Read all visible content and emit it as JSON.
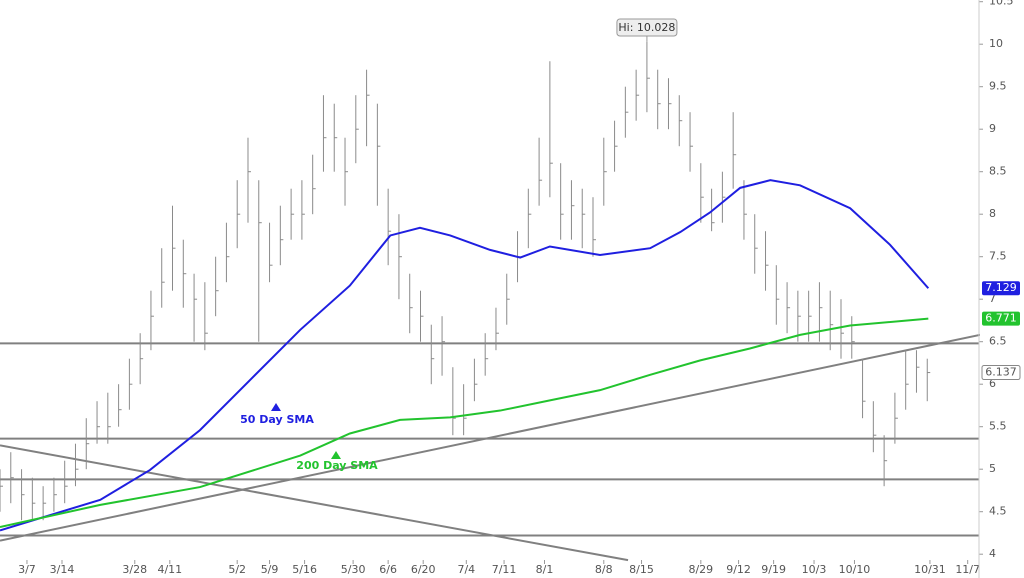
{
  "chart_data": {
    "type": "ohlc",
    "xlim": [
      0,
      181.6
    ],
    "ylim": [
      3.72,
      10.52
    ],
    "xticks": [
      {
        "value": 5,
        "label": "3/7"
      },
      {
        "value": 11.5,
        "label": "3/14"
      },
      {
        "value": 25,
        "label": "3/28"
      },
      {
        "value": 31.5,
        "label": "4/11"
      },
      {
        "value": 44,
        "label": "5/2"
      },
      {
        "value": 50,
        "label": "5/9"
      },
      {
        "value": 56.5,
        "label": "5/16"
      },
      {
        "value": 65.5,
        "label": "5/30"
      },
      {
        "value": 72,
        "label": "6/6"
      },
      {
        "value": 78.5,
        "label": "6/20"
      },
      {
        "value": 86.5,
        "label": "7/4"
      },
      {
        "value": 93.5,
        "label": "7/11"
      },
      {
        "value": 101,
        "label": "8/1"
      },
      {
        "value": 112,
        "label": "8/8"
      },
      {
        "value": 119,
        "label": "8/15"
      },
      {
        "value": 130,
        "label": "8/29"
      },
      {
        "value": 137,
        "label": "9/12"
      },
      {
        "value": 143.5,
        "label": "9/19"
      },
      {
        "value": 151,
        "label": "10/3"
      },
      {
        "value": 158.5,
        "label": "10/10"
      },
      {
        "value": 172.5,
        "label": "10/31"
      },
      {
        "value": 179.5,
        "label": "11/7"
      }
    ],
    "yticks": [
      4,
      4.5,
      5,
      5.5,
      6,
      6.5,
      7,
      7.5,
      8,
      8.5,
      9,
      9.5,
      10,
      10.5
    ],
    "price": {
      "color": "#8a8a8a",
      "x": [
        0,
        2,
        4,
        6,
        8,
        10,
        12,
        14,
        16,
        18,
        20,
        22,
        24,
        26,
        28,
        30,
        32,
        34,
        36,
        38,
        40,
        42,
        44,
        46,
        48,
        50,
        52,
        54,
        56,
        58,
        60,
        62,
        64,
        66,
        68,
        70,
        72,
        74,
        76,
        78,
        80,
        82,
        84,
        86,
        88,
        90,
        92,
        94,
        96,
        98,
        100,
        102,
        104,
        106,
        108,
        110,
        112,
        114,
        116,
        118,
        120,
        122,
        124,
        126,
        128,
        130,
        132,
        134,
        136,
        138,
        140,
        142,
        144,
        146,
        148,
        150,
        152,
        154,
        156,
        158,
        160,
        162,
        164,
        166,
        168,
        170,
        172
      ],
      "high": [
        5.0,
        5.2,
        5.0,
        4.9,
        4.8,
        4.9,
        5.1,
        5.3,
        5.6,
        5.8,
        5.9,
        6.0,
        6.3,
        6.6,
        7.1,
        7.6,
        8.1,
        7.7,
        7.3,
        7.2,
        7.5,
        7.9,
        8.4,
        8.9,
        8.4,
        7.9,
        8.1,
        8.3,
        8.4,
        8.7,
        9.4,
        9.3,
        8.9,
        9.4,
        9.7,
        9.3,
        8.3,
        8.0,
        7.3,
        7.1,
        6.7,
        6.8,
        6.2,
        6.0,
        6.3,
        6.6,
        6.9,
        7.3,
        7.8,
        8.3,
        8.9,
        9.8,
        8.6,
        8.4,
        8.3,
        8.2,
        8.9,
        9.1,
        9.5,
        9.7,
        10.028,
        9.7,
        9.6,
        9.4,
        9.2,
        8.6,
        8.3,
        8.5,
        9.2,
        8.4,
        8.0,
        7.8,
        7.4,
        7.2,
        7.1,
        7.1,
        7.2,
        7.1,
        7.0,
        6.8,
        6.3,
        5.8,
        5.4,
        5.9,
        6.4,
        6.4,
        6.3
      ],
      "low": [
        4.5,
        4.6,
        4.4,
        4.4,
        4.4,
        4.5,
        4.6,
        4.8,
        5.0,
        5.3,
        5.3,
        5.5,
        5.7,
        6.0,
        6.4,
        6.9,
        7.1,
        6.9,
        6.5,
        6.4,
        6.8,
        7.2,
        7.6,
        7.9,
        6.5,
        7.2,
        7.4,
        7.7,
        7.7,
        8.0,
        8.5,
        8.5,
        8.1,
        8.6,
        8.8,
        8.1,
        7.4,
        7.0,
        6.6,
        6.5,
        6.0,
        6.1,
        5.4,
        5.4,
        5.8,
        6.1,
        6.4,
        6.7,
        7.2,
        7.6,
        8.1,
        8.2,
        7.7,
        7.7,
        7.6,
        7.5,
        8.1,
        8.5,
        8.9,
        9.1,
        9.2,
        9.0,
        9.0,
        8.8,
        8.5,
        7.9,
        7.8,
        7.9,
        8.3,
        7.7,
        7.3,
        7.1,
        6.7,
        6.6,
        6.5,
        6.5,
        6.5,
        6.4,
        6.3,
        6.3,
        5.6,
        5.2,
        4.8,
        5.3,
        5.7,
        5.9,
        5.8
      ],
      "close": [
        4.8,
        4.9,
        4.7,
        4.6,
        4.6,
        4.7,
        4.8,
        5.0,
        5.3,
        5.5,
        5.5,
        5.7,
        6.0,
        6.3,
        6.8,
        7.2,
        7.6,
        7.3,
        7.0,
        6.6,
        7.1,
        7.5,
        8.0,
        8.5,
        7.9,
        7.4,
        7.7,
        8.0,
        8.0,
        8.3,
        8.9,
        8.9,
        8.5,
        9.0,
        9.4,
        8.8,
        7.8,
        7.5,
        6.9,
        6.8,
        6.3,
        6.5,
        5.6,
        5.6,
        6.0,
        6.3,
        6.6,
        7.0,
        7.5,
        8.0,
        8.4,
        8.6,
        8.0,
        8.1,
        8.0,
        7.7,
        8.5,
        8.8,
        9.2,
        9.4,
        9.6,
        9.3,
        9.3,
        9.1,
        8.8,
        8.2,
        7.9,
        8.2,
        8.7,
        8.0,
        7.6,
        7.4,
        7.0,
        6.9,
        6.8,
        6.8,
        6.9,
        6.7,
        6.6,
        6.5,
        5.8,
        5.4,
        5.1,
        5.6,
        6.0,
        6.2,
        6.137
      ]
    },
    "series": [
      {
        "name": "50 Day SMA",
        "color": "#1f1fe0",
        "x": [
          0,
          18.6,
          27.8,
          37.1,
          46.4,
          55.7,
          64.9,
          72.4,
          77.9,
          83.5,
          90.9,
          96.5,
          102,
          111.3,
          120.6,
          126.2,
          131.7,
          137.3,
          142.9,
          148.4,
          157.7,
          165.1,
          172.2
        ],
        "values": [
          4.28,
          4.64,
          4.99,
          5.46,
          6.05,
          6.64,
          7.16,
          7.75,
          7.84,
          7.75,
          7.58,
          7.49,
          7.62,
          7.52,
          7.6,
          7.79,
          8.02,
          8.31,
          8.4,
          8.34,
          8.07,
          7.64,
          7.129
        ]
      },
      {
        "name": "200 Day SMA",
        "color": "#22c32e",
        "x": [
          0,
          18.6,
          37.1,
          55.7,
          64.9,
          74.2,
          83.5,
          92.8,
          102,
          111.3,
          120.6,
          129.9,
          139.1,
          148.4,
          157.7,
          172.2
        ],
        "values": [
          4.32,
          4.58,
          4.79,
          5.16,
          5.42,
          5.58,
          5.61,
          5.69,
          5.81,
          5.93,
          6.11,
          6.28,
          6.42,
          6.58,
          6.69,
          6.771
        ]
      }
    ],
    "hlines": [
      6.48,
      5.36,
      4.88,
      4.22
    ],
    "trendlines": [
      {
        "x": [
          0,
          190
        ],
        "values": [
          4.16,
          6.69
        ]
      },
      {
        "x": [
          0,
          116.5
        ],
        "values": [
          5.28,
          3.93
        ]
      }
    ],
    "annotation": "Hi: 10.028"
  }
}
